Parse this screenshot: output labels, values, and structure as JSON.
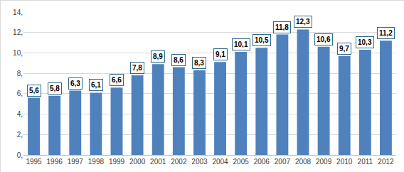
{
  "chart_data": {
    "type": "bar",
    "categories": [
      "1995",
      "1996",
      "1997",
      "1998",
      "1999",
      "2000",
      "2001",
      "2002",
      "2003",
      "2004",
      "2005",
      "2006",
      "2007",
      "2008",
      "2009",
      "2010",
      "2011",
      "2012"
    ],
    "values": [
      5.6,
      5.8,
      6.3,
      6.1,
      6.6,
      7.8,
      8.9,
      8.6,
      8.3,
      9.1,
      10.1,
      10.5,
      11.8,
      12.3,
      10.6,
      9.7,
      10.3,
      11.2
    ],
    "value_labels": [
      "5,6",
      "5,8",
      "6,3",
      "6,1",
      "6,6",
      "7,8",
      "8,9",
      "8,6",
      "8,3",
      "9,1",
      "10,1",
      "10,5",
      "11,8",
      "12,3",
      "10,6",
      "9,7",
      "10,3",
      "11,2"
    ],
    "color": "#4f81bd",
    "ylim": [
      0,
      14
    ],
    "yticks": [
      {
        "value": 0,
        "label": "0,"
      },
      {
        "value": 2,
        "label": "2,"
      },
      {
        "value": 4,
        "label": "4,"
      },
      {
        "value": 6,
        "label": "6,"
      },
      {
        "value": 8,
        "label": "8,"
      },
      {
        "value": 10,
        "label": "10,"
      },
      {
        "value": 12,
        "label": "12,"
      },
      {
        "value": 14,
        "label": "14,"
      }
    ],
    "grid": true,
    "data_labels": true
  }
}
